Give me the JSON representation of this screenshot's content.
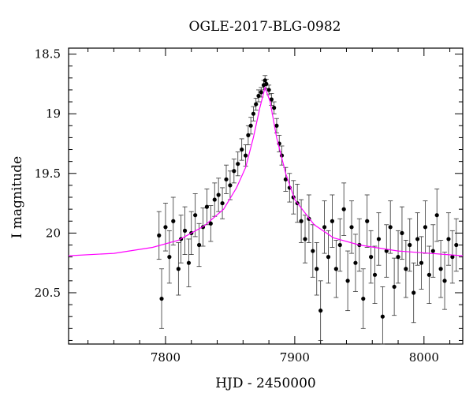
{
  "chart_data": {
    "type": "scatter",
    "title": "OGLE-2017-BLG-0982",
    "xlabel": "HJD - 2450000",
    "ylabel": "I magnitude",
    "xlim": [
      7725,
      8030
    ],
    "ylim": [
      18.45,
      20.93
    ],
    "y_inverted": true,
    "grid": false,
    "x_ticks": [
      7800,
      7900,
      8000
    ],
    "x_tick_labels": [
      "7800",
      "7900",
      "8000"
    ],
    "y_ticks": [
      18.5,
      19,
      19.5,
      20,
      20.5
    ],
    "y_tick_labels": [
      "18.5",
      "19",
      "19.5",
      "20",
      "20.5"
    ],
    "colors": {
      "points": "#000000",
      "model": "#ff00ff"
    },
    "model": {
      "name": "",
      "type": "microlensing-fit",
      "t0": 7877,
      "tE": 30,
      "u0": 0.12,
      "baseline_mag": 20.2,
      "points": [
        [
          7725,
          20.19
        ],
        [
          7760,
          20.17
        ],
        [
          7790,
          20.12
        ],
        [
          7810,
          20.06
        ],
        [
          7830,
          19.94
        ],
        [
          7845,
          19.8
        ],
        [
          7855,
          19.62
        ],
        [
          7862,
          19.45
        ],
        [
          7868,
          19.2
        ],
        [
          7873,
          18.95
        ],
        [
          7877,
          18.78
        ],
        [
          7881,
          18.9
        ],
        [
          7886,
          19.2
        ],
        [
          7893,
          19.5
        ],
        [
          7900,
          19.72
        ],
        [
          7915,
          19.93
        ],
        [
          7930,
          20.04
        ],
        [
          7950,
          20.1
        ],
        [
          7980,
          20.15
        ],
        [
          8030,
          20.19
        ]
      ]
    },
    "series": [
      {
        "name": "",
        "x": [
          7795,
          7797,
          7800,
          7803,
          7806,
          7810,
          7812,
          7815,
          7818,
          7820,
          7823,
          7826,
          7829,
          7832,
          7835,
          7838,
          7841,
          7844,
          7847,
          7850,
          7853,
          7856,
          7859,
          7862,
          7864,
          7866,
          7868,
          7870,
          7872,
          7874,
          7876,
          7877,
          7878,
          7880,
          7882,
          7884,
          7886,
          7888,
          7890,
          7893,
          7896,
          7899,
          7902,
          7905,
          7908,
          7911,
          7914,
          7917,
          7920,
          7923,
          7926,
          7929,
          7932,
          7935,
          7938,
          7941,
          7944,
          7947,
          7950,
          7953,
          7956,
          7959,
          7962,
          7965,
          7968,
          7971,
          7974,
          7977,
          7980,
          7983,
          7986,
          7989,
          7992,
          7995,
          7998,
          8001,
          8004,
          8007,
          8010,
          8013,
          8016,
          8019,
          8022,
          8025
        ],
        "y": [
          20.02,
          20.55,
          19.95,
          20.2,
          19.9,
          20.3,
          20.05,
          19.98,
          20.25,
          20.0,
          19.85,
          20.1,
          19.95,
          19.78,
          19.92,
          19.72,
          19.68,
          19.75,
          19.55,
          19.6,
          19.48,
          19.42,
          19.3,
          19.35,
          19.18,
          19.1,
          19.0,
          18.92,
          18.85,
          18.82,
          18.76,
          18.72,
          18.75,
          18.8,
          18.88,
          18.95,
          19.1,
          19.25,
          19.35,
          19.55,
          19.62,
          19.7,
          19.75,
          19.9,
          20.05,
          19.88,
          20.15,
          20.3,
          20.65,
          19.95,
          20.2,
          19.9,
          20.3,
          20.1,
          19.8,
          20.4,
          19.95,
          20.25,
          20.1,
          20.55,
          19.9,
          20.2,
          20.35,
          20.05,
          20.7,
          20.15,
          19.95,
          20.45,
          20.2,
          20.0,
          20.3,
          20.1,
          20.5,
          20.05,
          20.25,
          19.95,
          20.35,
          20.15,
          19.85,
          20.3,
          20.4,
          20.05,
          20.2,
          20.1
        ],
        "yerr": [
          0.2,
          0.25,
          0.2,
          0.22,
          0.2,
          0.22,
          0.2,
          0.2,
          0.2,
          0.18,
          0.18,
          0.18,
          0.16,
          0.15,
          0.15,
          0.14,
          0.14,
          0.13,
          0.12,
          0.12,
          0.1,
          0.1,
          0.09,
          0.09,
          0.08,
          0.07,
          0.06,
          0.05,
          0.05,
          0.04,
          0.04,
          0.04,
          0.04,
          0.04,
          0.05,
          0.05,
          0.06,
          0.07,
          0.08,
          0.1,
          0.12,
          0.14,
          0.16,
          0.18,
          0.2,
          0.2,
          0.22,
          0.22,
          0.25,
          0.22,
          0.22,
          0.22,
          0.24,
          0.22,
          0.22,
          0.25,
          0.22,
          0.24,
          0.22,
          0.25,
          0.22,
          0.22,
          0.24,
          0.22,
          0.25,
          0.22,
          0.22,
          0.24,
          0.22,
          0.22,
          0.24,
          0.22,
          0.25,
          0.22,
          0.22,
          0.22,
          0.24,
          0.22,
          0.22,
          0.24,
          0.24,
          0.22,
          0.22,
          0.22
        ]
      }
    ]
  }
}
